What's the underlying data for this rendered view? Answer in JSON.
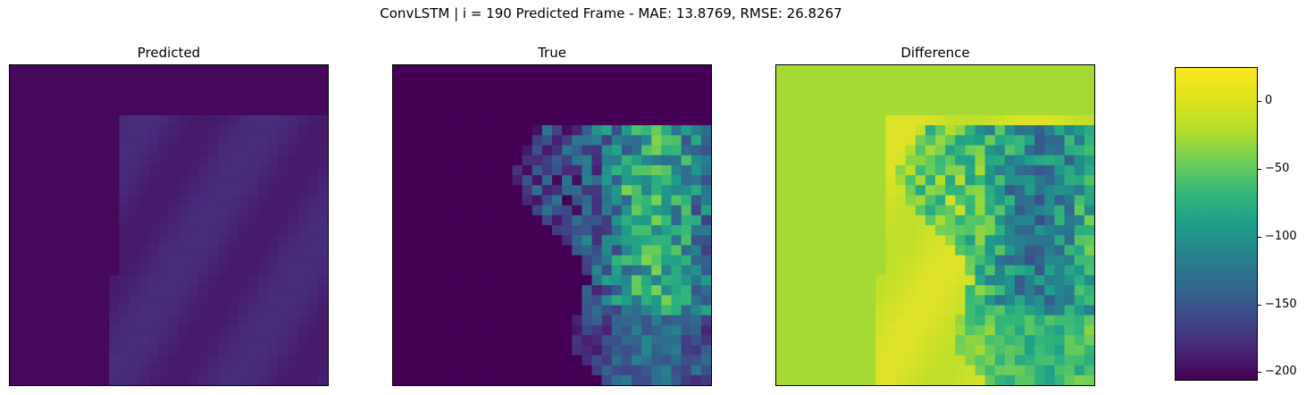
{
  "figure": {
    "suptitle": "ConvLSTM | i = 190 Predicted Frame - MAE: 13.8769, RMSE: 26.8267"
  },
  "chart_data": [
    {
      "type": "heatmap",
      "title": "Predicted",
      "grid": false,
      "colormap": "viridis",
      "vmin": 0,
      "vmax": 200,
      "description_level": "mostly near 0 with a low plateau on the right half"
    },
    {
      "type": "heatmap",
      "title": "True",
      "grid": false,
      "colormap": "viridis",
      "vmin": 0,
      "vmax": 200,
      "description_level": "zeros on the left, noisy values up to ~150 on the right"
    },
    {
      "type": "heatmap",
      "title": "Difference",
      "grid": false,
      "colormap": "viridis",
      "vmin": -200,
      "vmax": 25,
      "description_level": "near 0 on the left, negative patches down to ~-200 on the right"
    }
  ],
  "colorbar": {
    "vmin": -205,
    "vmax": 25,
    "ticks": [
      0,
      -50,
      -100,
      -150,
      -200
    ],
    "tick_labels": [
      "0",
      "−50",
      "−100",
      "−150",
      "−200"
    ]
  }
}
